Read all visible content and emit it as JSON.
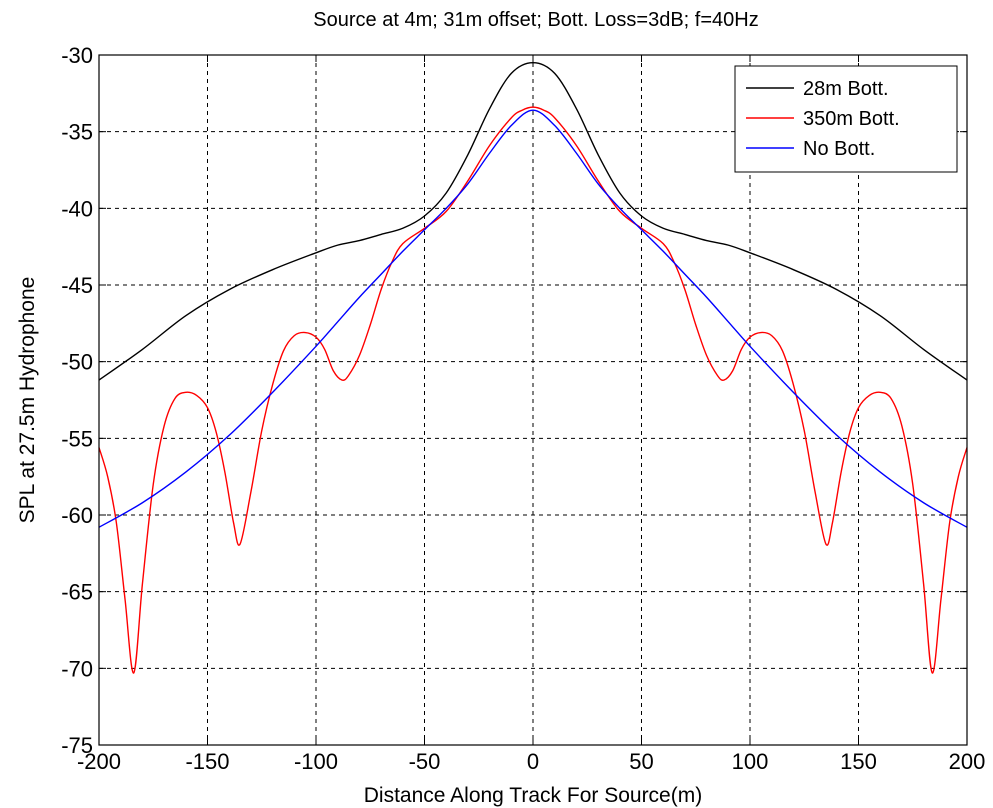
{
  "chart_data": {
    "type": "line",
    "title": "Source at 4m; 31m offset; Bott. Loss=3dB; f=40Hz",
    "xlabel": "Distance Along Track For Source(m)",
    "ylabel": "SPL at 27.5m Hydrophone",
    "xlim": [
      -200,
      200
    ],
    "ylim": [
      -75,
      -30
    ],
    "xticks": [
      -200,
      -150,
      -100,
      -50,
      0,
      50,
      100,
      150,
      200
    ],
    "yticks": [
      -30,
      -35,
      -40,
      -45,
      -50,
      -55,
      -60,
      -65,
      -70,
      -75
    ],
    "grid": true,
    "legend_position": "top-right",
    "symmetric_about_x0": true,
    "series": [
      {
        "name": "28m Bott.",
        "color": "#000000",
        "points": [
          [
            0,
            -30.5
          ],
          [
            10,
            -31.2
          ],
          [
            20,
            -33.5
          ],
          [
            30,
            -36.5
          ],
          [
            40,
            -39.0
          ],
          [
            50,
            -40.5
          ],
          [
            60,
            -41.3
          ],
          [
            70,
            -41.7
          ],
          [
            80,
            -42.1
          ],
          [
            90,
            -42.4
          ],
          [
            100,
            -42.9
          ],
          [
            120,
            -44.0
          ],
          [
            140,
            -45.3
          ],
          [
            160,
            -47.0
          ],
          [
            180,
            -49.2
          ],
          [
            200,
            -51.2
          ]
        ]
      },
      {
        "name": "350m Bott.",
        "color": "#ff0000",
        "points": [
          [
            0,
            -33.4
          ],
          [
            5,
            -33.6
          ],
          [
            10,
            -34.1
          ],
          [
            20,
            -35.9
          ],
          [
            30,
            -38.2
          ],
          [
            40,
            -40.2
          ],
          [
            50,
            -41.3
          ],
          [
            60,
            -42.3
          ],
          [
            65,
            -43.5
          ],
          [
            70,
            -45.3
          ],
          [
            75,
            -47.6
          ],
          [
            80,
            -49.6
          ],
          [
            85,
            -50.9
          ],
          [
            88,
            -51.2
          ],
          [
            92,
            -50.6
          ],
          [
            96,
            -49.2
          ],
          [
            100,
            -48.4
          ],
          [
            105,
            -48.1
          ],
          [
            110,
            -48.3
          ],
          [
            115,
            -49.3
          ],
          [
            120,
            -51.5
          ],
          [
            125,
            -54.5
          ],
          [
            130,
            -58.5
          ],
          [
            135,
            -61.9
          ],
          [
            138,
            -60.5
          ],
          [
            142,
            -57.2
          ],
          [
            146,
            -54.6
          ],
          [
            150,
            -53.0
          ],
          [
            155,
            -52.2
          ],
          [
            160,
            -52.0
          ],
          [
            165,
            -52.4
          ],
          [
            170,
            -54.2
          ],
          [
            175,
            -58.0
          ],
          [
            180,
            -64.5
          ],
          [
            184,
            -70.3
          ],
          [
            188,
            -65.5
          ],
          [
            192,
            -60.5
          ],
          [
            196,
            -57.5
          ],
          [
            200,
            -55.6
          ]
        ]
      },
      {
        "name": "No Bott.",
        "color": "#0000ff",
        "points": [
          [
            0,
            -33.6
          ],
          [
            10,
            -34.6
          ],
          [
            20,
            -36.4
          ],
          [
            30,
            -38.4
          ],
          [
            40,
            -40.0
          ],
          [
            50,
            -41.4
          ],
          [
            60,
            -42.8
          ],
          [
            70,
            -44.3
          ],
          [
            80,
            -45.8
          ],
          [
            90,
            -47.4
          ],
          [
            100,
            -49.0
          ],
          [
            120,
            -52.0
          ],
          [
            140,
            -54.8
          ],
          [
            160,
            -57.2
          ],
          [
            180,
            -59.2
          ],
          [
            200,
            -60.8
          ]
        ]
      }
    ]
  }
}
